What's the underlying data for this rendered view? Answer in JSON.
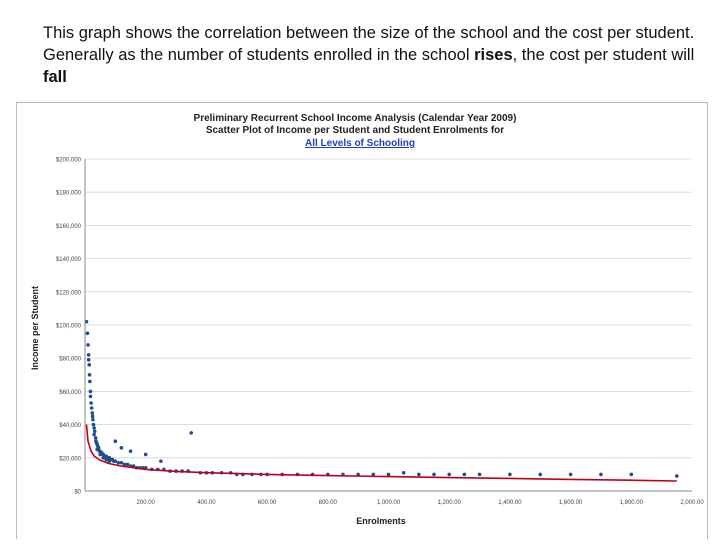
{
  "caption": {
    "part1": "This graph shows the correlation between the size of the school and the cost per student. Generally as the number of students enrolled in the school ",
    "rises": "rises",
    "part2": ", the cost per student will ",
    "fall": "fall"
  },
  "chart_data": {
    "type": "scatter",
    "title_line1": "Preliminary Recurrent School Income Analysis (Calendar Year 2009)",
    "title_line2": "Scatter Plot of Income per Student and Student Enrolments for",
    "title_line3": "All Levels of Schooling",
    "xlabel": "Enrolments",
    "ylabel": "Income per Student",
    "xlim": [
      0,
      2000
    ],
    "ylim": [
      0,
      200000
    ],
    "x_ticks": [
      200,
      400,
      600,
      800,
      1000,
      1200,
      1400,
      1600,
      1800,
      2000
    ],
    "x_tick_labels": [
      "200.00",
      "400.00",
      "600.00",
      "800.00",
      "1,000.00",
      "1,200.00",
      "1,400.00",
      "1,600.00",
      "1,800.00",
      "2,000.00"
    ],
    "y_ticks": [
      0,
      20000,
      40000,
      60000,
      80000,
      100000,
      120000,
      140000,
      160000,
      180000,
      200000
    ],
    "y_tick_labels": [
      "$0",
      "$20,000",
      "$40,000",
      "$60,000",
      "$80,000",
      "$100,000",
      "$120,000",
      "$140,000",
      "$160,000",
      "$180,000",
      "$200,000"
    ],
    "grid": true,
    "colors": {
      "points": "#1f4e8c",
      "trend": "#c0001a",
      "title_link": "#1f3fbf"
    },
    "series": [
      {
        "type": "scatter",
        "x": [
          5,
          8,
          10,
          12,
          12,
          14,
          15,
          16,
          18,
          18,
          20,
          22,
          24,
          25,
          26,
          28,
          30,
          30,
          32,
          35,
          36,
          38,
          40,
          40,
          42,
          45,
          48,
          50,
          50,
          55,
          60,
          60,
          65,
          70,
          70,
          75,
          80,
          80,
          85,
          90,
          95,
          100,
          100,
          110,
          120,
          120,
          130,
          140,
          150,
          150,
          160,
          170,
          180,
          190,
          200,
          200,
          220,
          240,
          250,
          260,
          280,
          300,
          320,
          340,
          350,
          380,
          400,
          420,
          450,
          480,
          500,
          520,
          550,
          580,
          600,
          650,
          700,
          750,
          800,
          850,
          900,
          950,
          1000,
          1050,
          1100,
          1150,
          1200,
          1250,
          1300,
          1400,
          1500,
          1600,
          1700,
          1800,
          1950
        ],
        "y": [
          102000,
          95000,
          88000,
          82000,
          79000,
          76000,
          70000,
          66000,
          60000,
          57000,
          53000,
          50000,
          47000,
          45000,
          43000,
          40000,
          38000,
          34000,
          36000,
          32000,
          30000,
          29000,
          28000,
          25000,
          27000,
          26000,
          24000,
          24000,
          22000,
          23000,
          22000,
          20000,
          21000,
          21000,
          19000,
          20000,
          20000,
          18000,
          19000,
          19000,
          18000,
          18000,
          30000,
          17000,
          17000,
          26000,
          16000,
          16000,
          15000,
          24000,
          15000,
          14000,
          14000,
          14000,
          14000,
          22000,
          13000,
          13000,
          18000,
          13000,
          12000,
          12000,
          12000,
          12000,
          35000,
          11000,
          11000,
          11000,
          11000,
          11000,
          10000,
          10000,
          10000,
          10000,
          10000,
          10000,
          10000,
          10000,
          10000,
          10000,
          10000,
          10000,
          10000,
          11000,
          10000,
          10000,
          10000,
          10000,
          10000,
          10000,
          10000,
          10000,
          10000,
          10000,
          9000
        ]
      },
      {
        "type": "line",
        "x": [
          5,
          10,
          20,
          30,
          50,
          80,
          120,
          200,
          300,
          400,
          600,
          800,
          1000,
          1200,
          1400,
          1600,
          1800,
          1950
        ],
        "y": [
          40000,
          30000,
          24000,
          21000,
          18500,
          16500,
          15000,
          13000,
          11800,
          11000,
          10000,
          9300,
          8700,
          8100,
          7600,
          7000,
          6500,
          6000
        ]
      }
    ]
  }
}
